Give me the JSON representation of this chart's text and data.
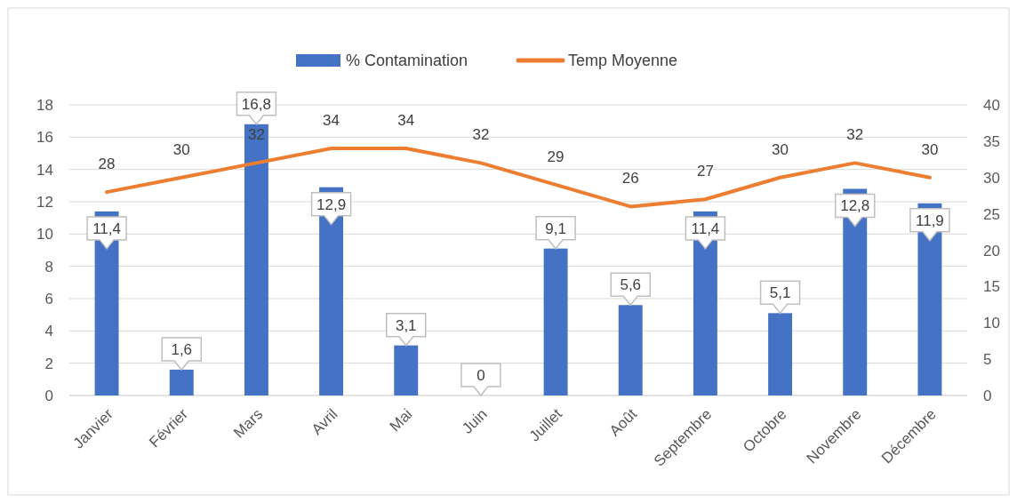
{
  "chart_data": {
    "type": "bar",
    "categories": [
      "Janvier",
      "Février",
      "Mars",
      "Avril",
      "Mai",
      "Juin",
      "Juillet",
      "Août",
      "Septembre",
      "Octobre",
      "Novembre",
      "Décembre"
    ],
    "series": [
      {
        "name": "% Contamination",
        "color": "#4472c4",
        "values": [
          11.4,
          1.6,
          16.8,
          12.9,
          3.1,
          0,
          9.1,
          5.6,
          11.4,
          5.1,
          12.8,
          11.9
        ],
        "value_labels": [
          "11,4",
          "1,6",
          "16,8",
          "12,9",
          "3,1",
          "0",
          "9,1",
          "5,6",
          "11,4",
          "5,1",
          "12,8",
          "11,9"
        ]
      },
      {
        "name": "Temp Moyenne",
        "type": "line",
        "axis": "y2",
        "color": "#ed7d31",
        "values": [
          28,
          30,
          32,
          34,
          34,
          32,
          29,
          26,
          27,
          30,
          32,
          30
        ]
      }
    ],
    "ylim": [
      0,
      18
    ],
    "yticks": [
      0,
      2,
      4,
      6,
      8,
      10,
      12,
      14,
      16,
      18
    ],
    "y2lim": [
      0,
      40
    ],
    "y2ticks": [
      0,
      5,
      10,
      15,
      20,
      25,
      30,
      35,
      40
    ],
    "grid": "y",
    "legend": "top",
    "data_labels": true,
    "marker": "none"
  }
}
